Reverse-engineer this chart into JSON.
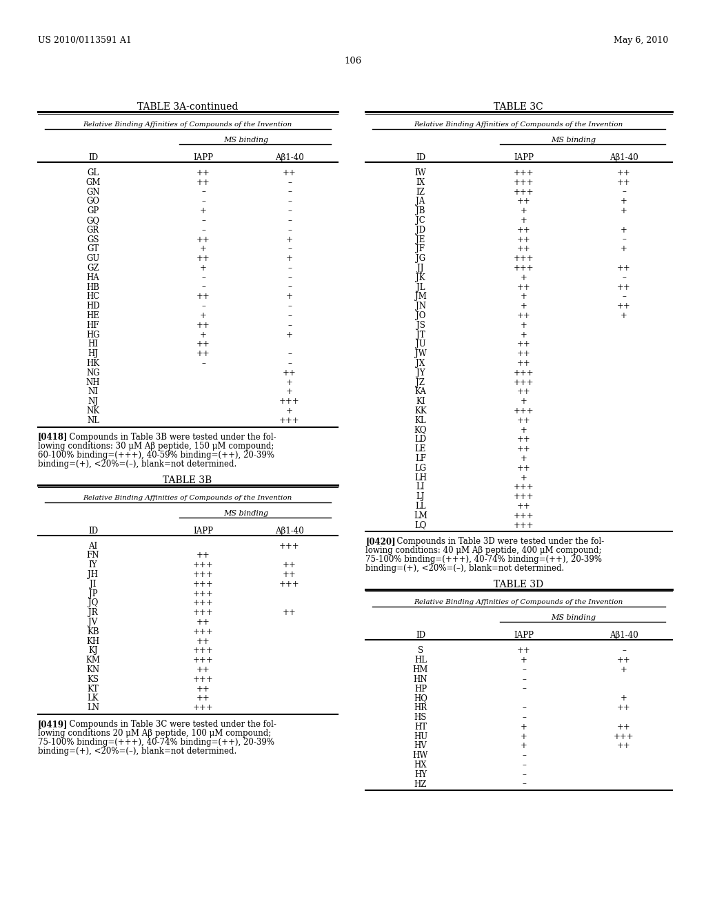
{
  "page_header_left": "US 2010/0113591 A1",
  "page_header_right": "May 6, 2010",
  "page_number": "106",
  "bg_color": "#ffffff",
  "text_color": "#000000",
  "table3a_title": "TABLE 3A-continued",
  "table3a_subtitle": "Relative Binding Affinities of Compounds of the Invention",
  "table3a_ms_binding": "MS binding",
  "table3a_col1": "ID",
  "table3a_col2": "IAPP",
  "table3a_col3": "Aβ1-40",
  "table3a_rows": [
    [
      "GL",
      "++",
      "++"
    ],
    [
      "GM",
      "++",
      "–"
    ],
    [
      "GN",
      "–",
      "–"
    ],
    [
      "GO",
      "–",
      "–"
    ],
    [
      "GP",
      "+",
      "–"
    ],
    [
      "GQ",
      "–",
      "–"
    ],
    [
      "GR",
      "–",
      "–"
    ],
    [
      "GS",
      "++",
      "+"
    ],
    [
      "GT",
      "+",
      "–"
    ],
    [
      "GU",
      "++",
      "+"
    ],
    [
      "GZ",
      "+",
      "–"
    ],
    [
      "HA",
      "–",
      "–"
    ],
    [
      "HB",
      "–",
      "–"
    ],
    [
      "HC",
      "++",
      "+"
    ],
    [
      "HD",
      "–",
      "–"
    ],
    [
      "HE",
      "+",
      "–"
    ],
    [
      "HF",
      "++",
      "–"
    ],
    [
      "HG",
      "+",
      "+"
    ],
    [
      "HI",
      "++",
      ""
    ],
    [
      "HJ",
      "++",
      "–"
    ],
    [
      "HK",
      "–",
      "–"
    ],
    [
      "NG",
      "",
      "++"
    ],
    [
      "NH",
      "",
      "+"
    ],
    [
      "NI",
      "",
      "+"
    ],
    [
      "NJ",
      "",
      "+++"
    ],
    [
      "NK",
      "",
      "+"
    ],
    [
      "NL",
      "",
      "+++"
    ]
  ],
  "table3b_title": "TABLE 3B",
  "table3b_subtitle": "Relative Binding Affinities of Compounds of the Invention",
  "table3b_ms_binding": "MS binding",
  "table3b_col1": "ID",
  "table3b_col2": "IAPP",
  "table3b_col3": "Aβ1-40",
  "table3b_rows": [
    [
      "AI",
      "",
      "+++"
    ],
    [
      "FN",
      "++",
      ""
    ],
    [
      "IY",
      "+++",
      "++"
    ],
    [
      "JH",
      "+++",
      "++"
    ],
    [
      "JI",
      "+++",
      "+++"
    ],
    [
      "JP",
      "+++",
      ""
    ],
    [
      "JQ",
      "+++",
      ""
    ],
    [
      "JR",
      "+++",
      "++"
    ],
    [
      "JV",
      "++",
      ""
    ],
    [
      "KB",
      "+++",
      ""
    ],
    [
      "KH",
      "++",
      ""
    ],
    [
      "KJ",
      "+++",
      ""
    ],
    [
      "KM",
      "+++",
      ""
    ],
    [
      "KN",
      "++",
      ""
    ],
    [
      "KS",
      "+++",
      ""
    ],
    [
      "KT",
      "++",
      ""
    ],
    [
      "LK",
      "++",
      ""
    ],
    [
      "LN",
      "+++",
      ""
    ]
  ],
  "table3c_title": "TABLE 3C",
  "table3c_subtitle": "Relative Binding Affinities of Compounds of the Invention",
  "table3c_ms_binding": "MS binding",
  "table3c_col1": "ID",
  "table3c_col2": "IAPP",
  "table3c_col3": "Aβ1-40",
  "table3c_rows": [
    [
      "IW",
      "+++",
      "++"
    ],
    [
      "IX",
      "+++",
      "++"
    ],
    [
      "IZ",
      "+++",
      "–"
    ],
    [
      "JA",
      "++",
      "+"
    ],
    [
      "JB",
      "+",
      "+"
    ],
    [
      "JC",
      "+",
      ""
    ],
    [
      "JD",
      "++",
      "+"
    ],
    [
      "JE",
      "++",
      "–"
    ],
    [
      "JF",
      "++",
      "+"
    ],
    [
      "JG",
      "+++",
      ""
    ],
    [
      "JJ",
      "+++",
      "++"
    ],
    [
      "JK",
      "+",
      "–"
    ],
    [
      "JL",
      "++",
      "++"
    ],
    [
      "JM",
      "+",
      "–"
    ],
    [
      "JN",
      "+",
      "++"
    ],
    [
      "JO",
      "++",
      "+"
    ],
    [
      "JS",
      "+",
      ""
    ],
    [
      "JT",
      "+",
      ""
    ],
    [
      "JU",
      "++",
      ""
    ],
    [
      "JW",
      "++",
      ""
    ],
    [
      "JX",
      "++",
      ""
    ],
    [
      "JY",
      "+++",
      ""
    ],
    [
      "JZ",
      "+++",
      ""
    ],
    [
      "KA",
      "++",
      ""
    ],
    [
      "KI",
      "+",
      ""
    ],
    [
      "KK",
      "+++",
      ""
    ],
    [
      "KL",
      "++",
      ""
    ],
    [
      "KQ",
      "+",
      ""
    ],
    [
      "LD",
      "++",
      ""
    ],
    [
      "LE",
      "++",
      ""
    ],
    [
      "LF",
      "+",
      ""
    ],
    [
      "LG",
      "++",
      ""
    ],
    [
      "LH",
      "+",
      ""
    ],
    [
      "LI",
      "+++",
      ""
    ],
    [
      "LJ",
      "+++",
      ""
    ],
    [
      "LL",
      "++",
      ""
    ],
    [
      "LM",
      "+++",
      ""
    ],
    [
      "LQ",
      "+++",
      ""
    ]
  ],
  "table3d_title": "TABLE 3D",
  "table3d_subtitle": "Relative Binding Affinities of Compounds of the Invention",
  "table3d_ms_binding": "MS binding",
  "table3d_col1": "ID",
  "table3d_col2": "IAPP",
  "table3d_col3": "Aβ1-40",
  "table3d_rows": [
    [
      "S",
      "++",
      "–"
    ],
    [
      "HL",
      "+",
      "++"
    ],
    [
      "HM",
      "–",
      "+"
    ],
    [
      "HN",
      "–",
      ""
    ],
    [
      "HP",
      "–",
      ""
    ],
    [
      "HQ",
      "",
      "+"
    ],
    [
      "HR",
      "–",
      "++"
    ],
    [
      "HS",
      "–",
      ""
    ],
    [
      "HT",
      "+",
      "++"
    ],
    [
      "HU",
      "+",
      "+++"
    ],
    [
      "HV",
      "+",
      "++"
    ],
    [
      "HW",
      "–",
      ""
    ],
    [
      "HX",
      "–",
      ""
    ],
    [
      "HY",
      "–",
      ""
    ],
    [
      "HZ",
      "–",
      ""
    ]
  ],
  "para0418_lines": [
    "[0418]",
    "Compounds in Table 3B were tested under the fol-",
    "lowing conditions: 30 μM Aβ peptide, 150 μM compound;",
    "60-100% binding=(+++), 40-59% binding=(++), 20-39%",
    "binding=(+), <20%=(–), blank=not determined."
  ],
  "para0419_lines": [
    "[0419]",
    "Compounds in Table 3C were tested under the fol-",
    "lowing conditions 20 μM Aβ peptide, 100 μM compound;",
    "75-100% binding=(+++), 40-74% binding=(++), 20-39%",
    "binding=(+), <20%=(–), blank=not determined."
  ],
  "para0420_lines": [
    "[0420]",
    "Compounds in Table 3D were tested under the fol-",
    "lowing conditions: 40 μM Aβ peptide, 400 μM compound;",
    "75-100% binding=(+++), 40-74% binding=(++), 20-39%",
    "binding=(+), <20%=(–), blank=not determined."
  ]
}
